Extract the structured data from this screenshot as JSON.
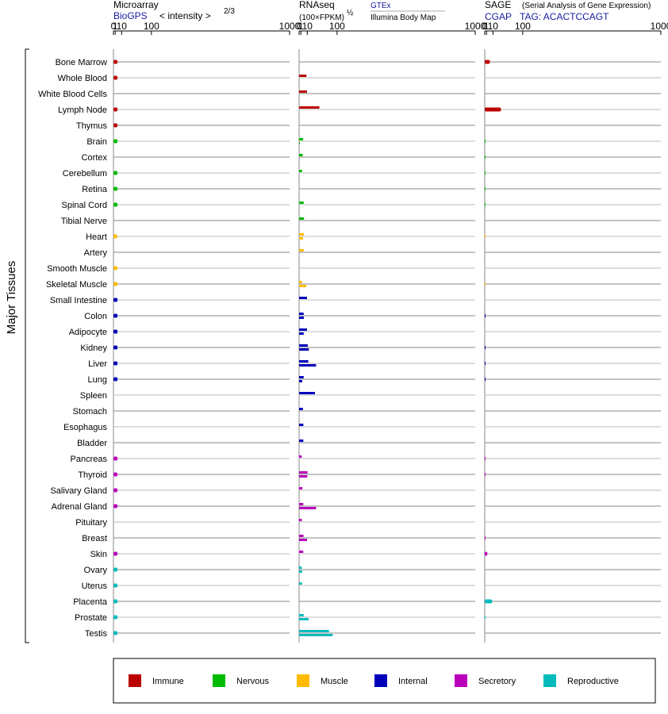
{
  "chart_data": {
    "type": "bar",
    "y_axis_label": "Major Tissues",
    "tissues": [
      "Bone Marrow",
      "Whole Blood",
      "White Blood Cells",
      "Lymph Node",
      "Thymus",
      "Brain",
      "Cortex",
      "Cerebellum",
      "Retina",
      "Spinal Cord",
      "Tibial Nerve",
      "Heart",
      "Artery",
      "Smooth Muscle",
      "Skeletal Muscle",
      "Small Intestine",
      "Colon",
      "Adipocyte",
      "Kidney",
      "Liver",
      "Lung",
      "Spleen",
      "Stomach",
      "Esophagus",
      "Bladder",
      "Pancreas",
      "Thyroid",
      "Salivary Gland",
      "Adrenal Gland",
      "Pituitary",
      "Breast",
      "Skin",
      "Ovary",
      "Uterus",
      "Placenta",
      "Prostate",
      "Testis"
    ],
    "tissue_groups": [
      "Immune",
      "Immune",
      "Immune",
      "Immune",
      "Immune",
      "Nervous",
      "Nervous",
      "Nervous",
      "Nervous",
      "Nervous",
      "Nervous",
      "Muscle",
      "Muscle",
      "Muscle",
      "Muscle",
      "Internal",
      "Internal",
      "Internal",
      "Internal",
      "Internal",
      "Internal",
      "Internal",
      "Internal",
      "Internal",
      "Internal",
      "Secretory",
      "Secretory",
      "Secretory",
      "Secretory",
      "Secretory",
      "Secretory",
      "Secretory",
      "Reproductive",
      "Reproductive",
      "Reproductive",
      "Reproductive",
      "Reproductive"
    ],
    "legend": [
      {
        "name": "Immune",
        "color": "#bb0000"
      },
      {
        "name": "Nervous",
        "color": "#00bb00"
      },
      {
        "name": "Muscle",
        "color": "#ffbb00"
      },
      {
        "name": "Internal",
        "color": "#0000bb"
      },
      {
        "name": "Secretory",
        "color": "#bb00bb"
      },
      {
        "name": "Reproductive",
        "color": "#00bbbb"
      }
    ],
    "panels": [
      {
        "id": "microarray",
        "title": "Microarray",
        "subtitle": "BioGPS",
        "scale_label": "< intensity >",
        "scale_exponent": "2/3",
        "ticks": [
          "0",
          "1",
          "10",
          "100",
          "1000"
        ],
        "tick_values": [
          0,
          1,
          10,
          100,
          1000
        ],
        "xlim": [
          0,
          1000
        ],
        "values": [
          [
            3.5
          ],
          [
            3.5
          ],
          [],
          [
            3.5
          ],
          [
            3.5
          ],
          [
            3.5
          ],
          [],
          [
            3.5
          ],
          [
            3.5
          ],
          [
            3.5
          ],
          [],
          [
            3.2
          ],
          [],
          [
            3.5
          ],
          [
            3.5
          ],
          [
            3.5
          ],
          [
            3.5
          ],
          [
            3.5
          ],
          [
            3.5
          ],
          [
            3.5
          ],
          [
            3.5
          ],
          [],
          [],
          [],
          [],
          [
            3.5
          ],
          [
            3.5
          ],
          [
            3.5
          ],
          [
            3.5
          ],
          [],
          [],
          [
            3.5
          ],
          [
            3.5
          ],
          [
            3.5
          ],
          [
            3.5
          ],
          [
            3.5
          ],
          [
            3.5
          ]
        ]
      },
      {
        "id": "rnaseq",
        "title": "RNAseq",
        "unit": "(100×FPKM)",
        "unit_exponent": "½",
        "source_a": "GTEx",
        "source_b": "Illumina Body Map",
        "ticks": [
          "0",
          "1",
          "10",
          "100",
          "1000"
        ],
        "tick_values": [
          0,
          1,
          10,
          100,
          1000
        ],
        "xlim": [
          0,
          1000
        ],
        "values": [
          [],
          [
            8.5
          ],
          [
            9.5
          ],
          [
            39
          ],
          [],
          [
            3.5,
            0.3
          ],
          [
            3
          ],
          [
            2.2
          ],
          [],
          [
            4.2
          ],
          [
            4.7
          ],
          [
            4.7,
            3.3
          ],
          [
            4.2
          ],
          [],
          [
            2.2,
            8.2
          ],
          [
            9.5
          ],
          [
            4.2,
            4.5
          ],
          [
            9.5,
            4.2
          ],
          [
            11,
            13
          ],
          [
            12,
            30
          ],
          [
            4.2,
            2.3
          ],
          [
            27
          ],
          [
            3.2
          ],
          [
            3.8
          ],
          [
            3.7
          ],
          [
            1.8
          ],
          [
            10.5,
            10
          ],
          [
            2.5
          ],
          [
            3.7,
            30
          ],
          [
            1.9
          ],
          [
            4,
            9.5
          ],
          [
            3.6
          ],
          [
            1.8,
            2.3
          ],
          [
            2
          ],
          [],
          [
            4.2,
            12.5
          ],
          [
            70,
            83
          ]
        ]
      },
      {
        "id": "sage",
        "title": "SAGE",
        "subtitle_small": "(Serial Analysis of Gene Expression)",
        "subtitle": "CGAP",
        "tag_label": "TAG: ACACTCCAGT",
        "ticks": [
          "0",
          "1",
          "10",
          "100",
          "1000"
        ],
        "tick_values": [
          0,
          1,
          10,
          100,
          1000
        ],
        "xlim": [
          0,
          1000
        ],
        "values": [
          [
            5
          ],
          [],
          [],
          [
            28
          ],
          [],
          [
            0.02
          ],
          [
            0.02
          ],
          [
            0.02
          ],
          [
            0.02
          ],
          [
            0.02
          ],
          [],
          [
            0.01
          ],
          [],
          [],
          [
            0.01
          ],
          [],
          [
            0.04
          ],
          [],
          [
            0.04
          ],
          [
            0.04
          ],
          [
            0.04
          ],
          [],
          [],
          [],
          [],
          [
            0.04
          ],
          [
            0.04
          ],
          [],
          [],
          [],
          [
            0.04
          ],
          [
            1.8
          ],
          [],
          [],
          [
            8.5
          ],
          [
            0.02
          ],
          []
        ]
      }
    ]
  }
}
